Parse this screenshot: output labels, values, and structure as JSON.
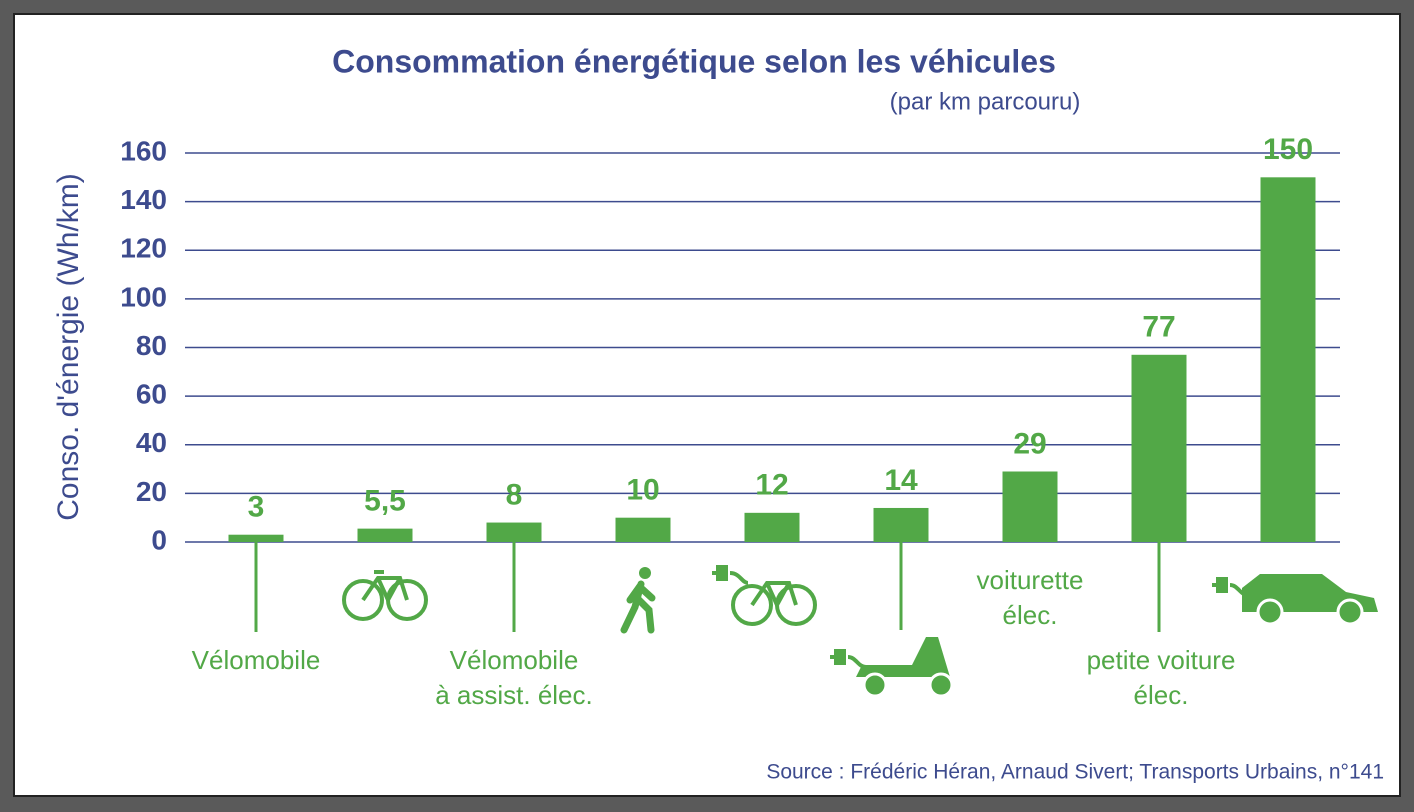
{
  "chart_data": {
    "type": "bar",
    "title": "Consommation énergétique selon les véhicules",
    "subtitle": "(par km parcouru)",
    "y_label": "Conso. d'énergie (Wh/km)",
    "source": "Source : Frédéric Héran, Arnaud Sivert; Transports Urbains, n°141",
    "categories": [
      [
        "Vélomobile"
      ],
      null,
      [
        "Vélomobile",
        "à assist. élec."
      ],
      null,
      null,
      null,
      [
        "voiturette",
        "élec."
      ],
      [
        "petite voiture",
        "élec."
      ],
      null
    ],
    "values": [
      3,
      5.5,
      8,
      10,
      12,
      14,
      29,
      77,
      150
    ],
    "value_labels": [
      "3",
      "5,5",
      "8",
      "10",
      "12",
      "14",
      "29",
      "77",
      "150"
    ],
    "color": "#52a847",
    "ylim": [
      0,
      160
    ],
    "yticks": [
      0,
      20,
      40,
      60,
      80,
      100,
      120,
      140,
      160
    ],
    "grid": true
  }
}
